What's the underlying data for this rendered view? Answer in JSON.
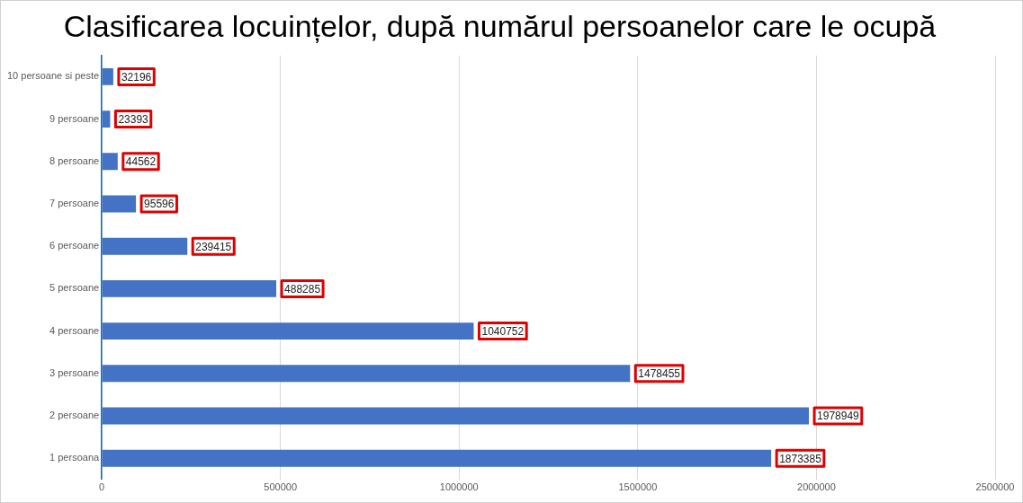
{
  "chart_data": {
    "type": "bar",
    "orientation": "horizontal",
    "title": "Clasificarea locuințelor, după numărul persoanelor care le ocupă",
    "categories": [
      "10 persoane si peste",
      "9 persoane",
      "8 persoane",
      "7 persoane",
      "6 persoane",
      "5 persoane",
      "4 persoane",
      "3 persoane",
      "2 persoane",
      "1 persoana"
    ],
    "values": [
      32196,
      23393,
      44562,
      95596,
      239415,
      488285,
      1040752,
      1478455,
      1978949,
      1873385
    ],
    "color": "#4472c4",
    "xlim": [
      0,
      2500000
    ],
    "xticks": [
      0,
      500000,
      1000000,
      1500000,
      2000000,
      2500000
    ],
    "grid": "x",
    "legend": false,
    "data_labels": true
  }
}
